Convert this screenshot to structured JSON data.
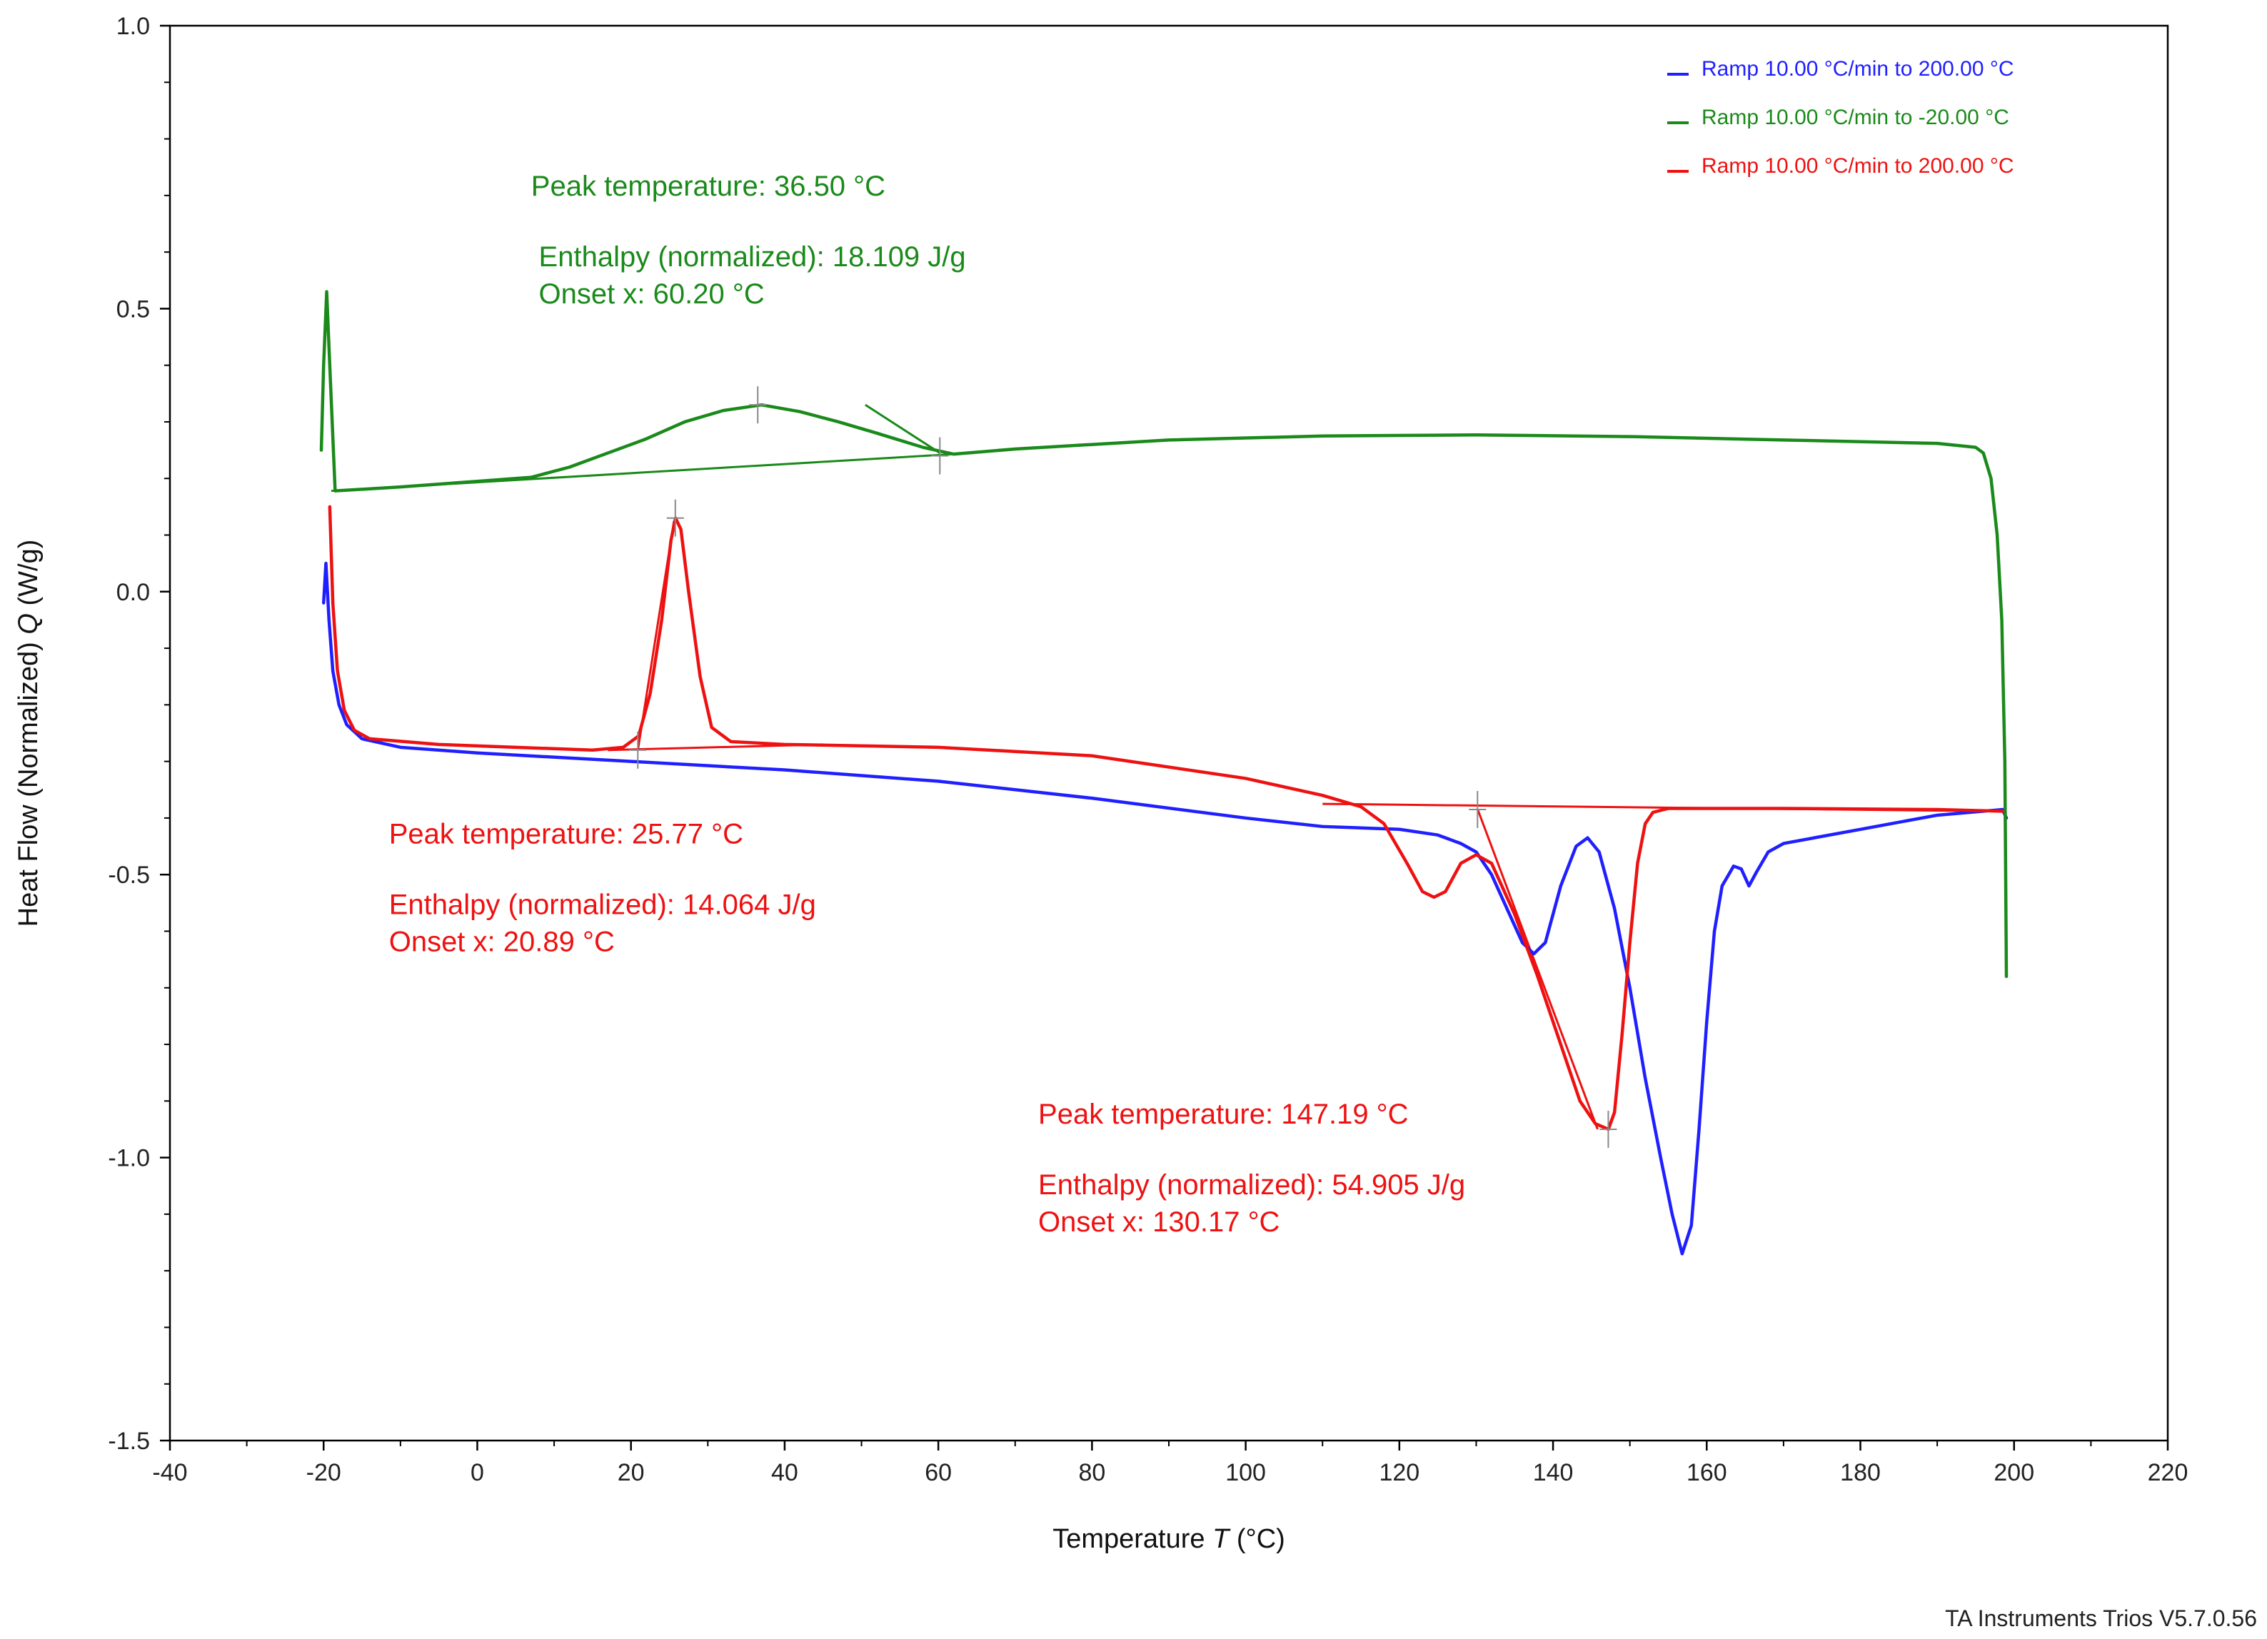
{
  "chart_data": {
    "type": "line",
    "title": "",
    "xlabel": "Temperature",
    "xlabel_symbol": "T",
    "xlabel_unit": "(°C)",
    "ylabel": "Heat Flow (Normalized)",
    "ylabel_symbol": "Q",
    "ylabel_unit": "(W/g)",
    "xlim": [
      -40,
      220
    ],
    "ylim": [
      -1.5,
      1.0
    ],
    "x_ticks": [
      -40,
      -20,
      0,
      20,
      40,
      60,
      80,
      100,
      120,
      140,
      160,
      180,
      200,
      220
    ],
    "x_tick_labels": [
      "-40",
      "-20",
      "0",
      "20",
      "40",
      "60",
      "80",
      "100",
      "120",
      "140",
      "160",
      "180",
      "200",
      "220"
    ],
    "y_ticks": [
      -1.5,
      -1.0,
      -0.5,
      0.0,
      0.5,
      1.0
    ],
    "y_tick_labels": [
      "-1.5",
      "-1.0",
      "-0.5",
      "0.0",
      "0.5",
      "1.0"
    ],
    "legend_position": "top-right",
    "series": [
      {
        "name": "Ramp 10.00 °C/min to 200.00 °C",
        "color": "#1f1fff",
        "points": [
          [
            -20.0,
            -0.02
          ],
          [
            -19.7,
            0.05
          ],
          [
            -19.3,
            -0.05
          ],
          [
            -18.8,
            -0.14
          ],
          [
            -18,
            -0.2
          ],
          [
            -17,
            -0.235
          ],
          [
            -15,
            -0.26
          ],
          [
            -10,
            -0.275
          ],
          [
            0,
            -0.285
          ],
          [
            20,
            -0.3
          ],
          [
            40,
            -0.315
          ],
          [
            60,
            -0.335
          ],
          [
            80,
            -0.365
          ],
          [
            100,
            -0.4
          ],
          [
            110,
            -0.415
          ],
          [
            120,
            -0.42
          ],
          [
            125,
            -0.43
          ],
          [
            128,
            -0.445
          ],
          [
            130,
            -0.46
          ],
          [
            132,
            -0.5
          ],
          [
            134,
            -0.56
          ],
          [
            136,
            -0.62
          ],
          [
            137.5,
            -0.64
          ],
          [
            139,
            -0.62
          ],
          [
            141,
            -0.52
          ],
          [
            143,
            -0.45
          ],
          [
            144.5,
            -0.435
          ],
          [
            146,
            -0.46
          ],
          [
            148,
            -0.56
          ],
          [
            150,
            -0.7
          ],
          [
            152,
            -0.86
          ],
          [
            154,
            -1.0
          ],
          [
            155.5,
            -1.1
          ],
          [
            156.8,
            -1.17
          ],
          [
            158,
            -1.12
          ],
          [
            159,
            -0.95
          ],
          [
            160,
            -0.76
          ],
          [
            161,
            -0.6
          ],
          [
            162,
            -0.52
          ],
          [
            163.5,
            -0.485
          ],
          [
            164.5,
            -0.49
          ],
          [
            165.5,
            -0.52
          ],
          [
            166.5,
            -0.495
          ],
          [
            168,
            -0.46
          ],
          [
            170,
            -0.445
          ],
          [
            180,
            -0.42
          ],
          [
            190,
            -0.395
          ],
          [
            198.5,
            -0.385
          ],
          [
            199.0,
            -0.4
          ]
        ]
      },
      {
        "name": "Ramp 10.00 °C/min to -20.00 °C",
        "color": "#1a8a1a",
        "points": [
          [
            199.0,
            -0.68
          ],
          [
            198.8,
            -0.3
          ],
          [
            198.4,
            -0.05
          ],
          [
            197.8,
            0.1
          ],
          [
            197,
            0.2
          ],
          [
            196,
            0.245
          ],
          [
            195,
            0.255
          ],
          [
            190,
            0.262
          ],
          [
            170,
            0.268
          ],
          [
            150,
            0.274
          ],
          [
            130,
            0.277
          ],
          [
            110,
            0.275
          ],
          [
            90,
            0.268
          ],
          [
            70,
            0.252
          ],
          [
            62,
            0.243
          ],
          [
            58,
            0.255
          ],
          [
            52,
            0.28
          ],
          [
            47,
            0.3
          ],
          [
            42,
            0.318
          ],
          [
            37,
            0.33
          ],
          [
            32,
            0.32
          ],
          [
            27,
            0.3
          ],
          [
            22,
            0.27
          ],
          [
            17,
            0.245
          ],
          [
            12,
            0.22
          ],
          [
            7,
            0.202
          ],
          [
            0,
            0.195
          ],
          [
            -10,
            0.185
          ],
          [
            -18.5,
            0.178
          ],
          [
            -19.2,
            0.4
          ],
          [
            -19.6,
            0.53
          ],
          [
            -20.0,
            0.4
          ],
          [
            -20.3,
            0.25
          ]
        ]
      },
      {
        "name": "Ramp 10.00 °C/min to 200.00 °C",
        "color": "#ee1111",
        "points": [
          [
            -19.2,
            0.15
          ],
          [
            -18.8,
            -0.02
          ],
          [
            -18.2,
            -0.14
          ],
          [
            -17.3,
            -0.21
          ],
          [
            -16,
            -0.245
          ],
          [
            -14,
            -0.26
          ],
          [
            -5,
            -0.27
          ],
          [
            5,
            -0.275
          ],
          [
            15,
            -0.28
          ],
          [
            19,
            -0.275
          ],
          [
            21,
            -0.255
          ],
          [
            22.5,
            -0.18
          ],
          [
            24,
            -0.05
          ],
          [
            25.2,
            0.09
          ],
          [
            25.8,
            0.13
          ],
          [
            26.5,
            0.11
          ],
          [
            27.5,
            0.0
          ],
          [
            29,
            -0.15
          ],
          [
            30.5,
            -0.24
          ],
          [
            33,
            -0.265
          ],
          [
            40,
            -0.27
          ],
          [
            60,
            -0.275
          ],
          [
            80,
            -0.29
          ],
          [
            100,
            -0.33
          ],
          [
            110,
            -0.36
          ],
          [
            115,
            -0.38
          ],
          [
            118,
            -0.41
          ],
          [
            121,
            -0.48
          ],
          [
            123,
            -0.53
          ],
          [
            124.5,
            -0.54
          ],
          [
            126,
            -0.53
          ],
          [
            128,
            -0.48
          ],
          [
            130,
            -0.465
          ],
          [
            132,
            -0.48
          ],
          [
            135,
            -0.57
          ],
          [
            138,
            -0.68
          ],
          [
            141,
            -0.8
          ],
          [
            143.5,
            -0.9
          ],
          [
            145.5,
            -0.94
          ],
          [
            147.2,
            -0.95
          ],
          [
            148,
            -0.92
          ],
          [
            149,
            -0.78
          ],
          [
            150,
            -0.62
          ],
          [
            151,
            -0.48
          ],
          [
            152,
            -0.41
          ],
          [
            153,
            -0.39
          ],
          [
            155,
            -0.383
          ],
          [
            170,
            -0.383
          ],
          [
            190,
            -0.385
          ],
          [
            198.5,
            -0.388
          ]
        ]
      }
    ],
    "construction_lines": [
      {
        "color": "#1a8a1a",
        "points": [
          [
            -19,
            0.178
          ],
          [
            62,
            0.243
          ]
        ]
      },
      {
        "color": "#1a8a1a",
        "points": [
          [
            50.5,
            0.33
          ],
          [
            60.2,
            0.245
          ]
        ]
      },
      {
        "color": "#ee1111",
        "points": [
          [
            17,
            -0.28
          ],
          [
            45,
            -0.27
          ]
        ]
      },
      {
        "color": "#ee1111",
        "points": [
          [
            20.9,
            -0.28
          ],
          [
            25.6,
            0.125
          ]
        ]
      },
      {
        "color": "#ee1111",
        "points": [
          [
            110,
            -0.375
          ],
          [
            198,
            -0.388
          ]
        ]
      },
      {
        "color": "#ee1111",
        "points": [
          [
            130.2,
            -0.385
          ],
          [
            145.8,
            -0.95
          ]
        ]
      }
    ],
    "markers": [
      {
        "x": 36.5,
        "y": 0.33,
        "color": "#888888"
      },
      {
        "x": 60.2,
        "y": 0.24,
        "color": "#888888"
      },
      {
        "x": 25.77,
        "y": 0.13,
        "color": "#888888"
      },
      {
        "x": 20.89,
        "y": -0.28,
        "color": "#888888"
      },
      {
        "x": 147.19,
        "y": -0.95,
        "color": "#888888"
      },
      {
        "x": 130.17,
        "y": -0.385,
        "color": "#888888"
      }
    ],
    "annotations": [
      {
        "id": "green-peak",
        "color": "#1a8a1a",
        "x": 7,
        "y": 0.7,
        "lines": [
          "Peak temperature: 36.50 °C"
        ]
      },
      {
        "id": "green-enthalpy",
        "color": "#1a8a1a",
        "x": 8,
        "y": 0.575,
        "lines": [
          "Enthalpy (normalized): 18.109 J/g",
          "Onset x: 60.20 °C"
        ]
      },
      {
        "id": "red1-peak",
        "color": "#ee1111",
        "x": -11.5,
        "y": -0.445,
        "lines": [
          "Peak temperature: 25.77 °C"
        ]
      },
      {
        "id": "red1-enthalpy",
        "color": "#ee1111",
        "x": -11.5,
        "y": -0.57,
        "lines": [
          "Enthalpy (normalized): 14.064 J/g",
          "Onset x: 20.89 °C"
        ]
      },
      {
        "id": "red2-peak",
        "color": "#ee1111",
        "x": 73,
        "y": -0.94,
        "lines": [
          "Peak temperature: 147.19 °C"
        ]
      },
      {
        "id": "red2-enthalpy",
        "color": "#ee1111",
        "x": 73,
        "y": -1.065,
        "lines": [
          "Enthalpy (normalized): 54.905 J/g",
          "Onset x: 130.17 °C"
        ]
      }
    ]
  },
  "footer": "TA Instruments Trios V5.7.0.56"
}
